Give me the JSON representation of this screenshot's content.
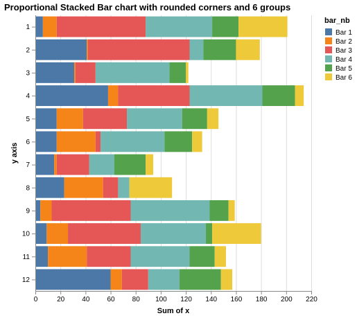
{
  "chart_data": {
    "type": "bar",
    "orientation": "horizontal",
    "stacked": true,
    "title": "Proportional Stacked Bar chart with rounded corners and 6 groups",
    "xlabel": "Sum of x",
    "ylabel": "y axis",
    "xlim": [
      0,
      220
    ],
    "x_ticks": [
      0,
      20,
      40,
      60,
      80,
      100,
      120,
      140,
      160,
      180,
      200,
      220
    ],
    "grid": true,
    "legend": {
      "title": "bar_nb",
      "position": "right"
    },
    "categories": [
      "1",
      "2",
      "3",
      "4",
      "5",
      "6",
      "7",
      "8",
      "9",
      "10",
      "11",
      "12"
    ],
    "series": [
      {
        "name": "Bar 1",
        "color": "#4c78a8",
        "values": [
          6,
          41,
          31,
          58,
          17,
          17,
          15,
          23,
          4,
          9,
          10,
          60
        ]
      },
      {
        "name": "Bar 2",
        "color": "#f58518",
        "values": [
          11,
          1,
          1,
          8,
          21,
          31,
          2,
          31,
          9,
          17,
          31,
          9
        ]
      },
      {
        "name": "Bar 3",
        "color": "#e45756",
        "values": [
          71,
          81,
          16,
          57,
          35,
          4,
          26,
          12,
          63,
          58,
          35,
          21
        ]
      },
      {
        "name": "Bar 4",
        "color": "#72b7b2",
        "values": [
          53,
          11,
          59,
          58,
          44,
          51,
          20,
          9,
          63,
          52,
          47,
          25
        ]
      },
      {
        "name": "Bar 5",
        "color": "#54a24b",
        "values": [
          21,
          26,
          13,
          26,
          20,
          22,
          25,
          0,
          15,
          5,
          20,
          33
        ]
      },
      {
        "name": "Bar 6",
        "color": "#eeca3b",
        "values": [
          39,
          19,
          2,
          7,
          9,
          8,
          6,
          34,
          5,
          39,
          9,
          9
        ]
      }
    ]
  }
}
